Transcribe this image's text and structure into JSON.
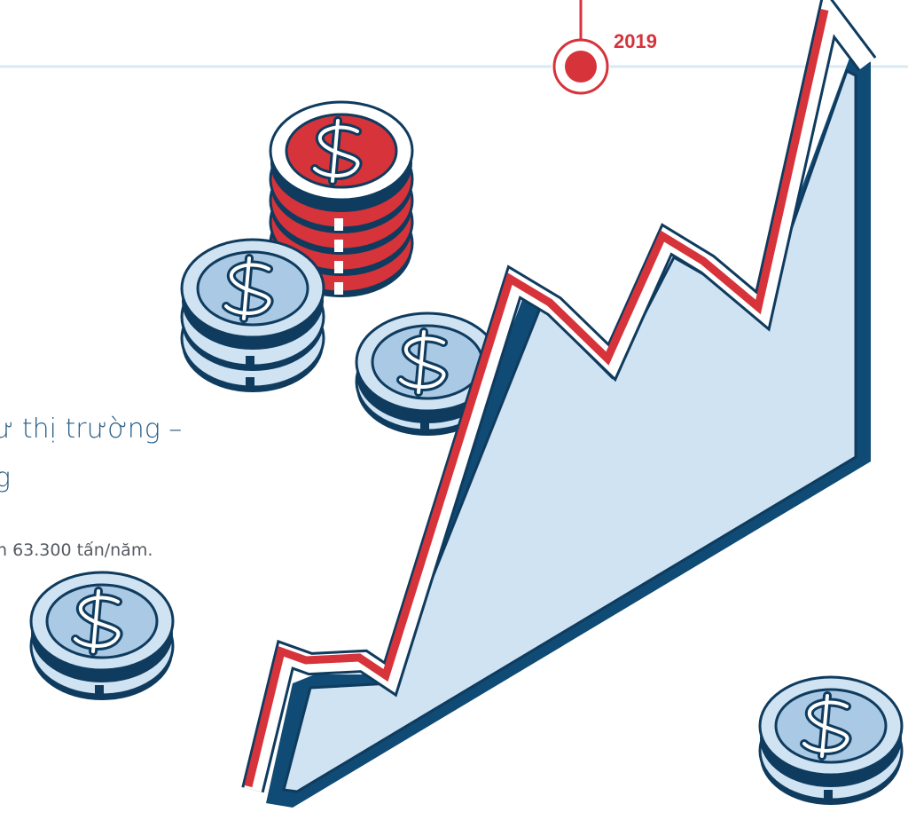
{
  "timeline": {
    "year": "2019"
  },
  "text": {
    "heading_line1": "ư thị trường –",
    "heading_line2": "g",
    "body": "n 63.300 tấn/năm."
  }
}
